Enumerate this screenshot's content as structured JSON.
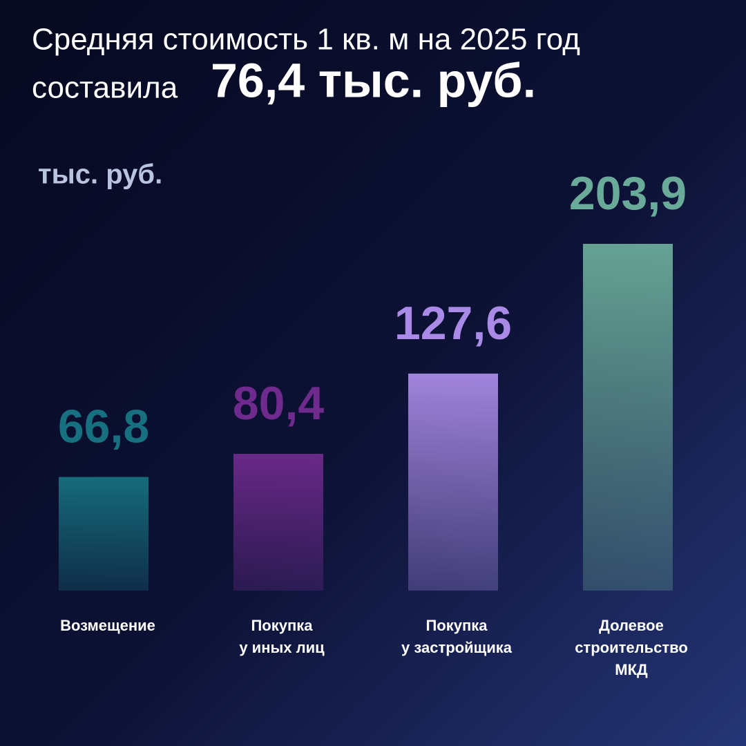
{
  "chart_data": {
    "type": "bar",
    "title": "Средняя стоимость 1 кв. м на 2025 год",
    "subtitle": "составила",
    "highlight": "76,4 тыс. руб.",
    "unit": "тыс. руб.",
    "categories": [
      [
        "Возмещение"
      ],
      [
        "Покупка",
        "у иных лиц"
      ],
      [
        "Покупка",
        "у застройщика"
      ],
      [
        "Долевое",
        "строительство",
        "МКД"
      ]
    ],
    "values": [
      66.8,
      80.4,
      127.6,
      203.9
    ],
    "value_labels": [
      "66,8",
      "80,4",
      "127,6",
      "203,9"
    ],
    "colors": [
      "#16707f",
      "#6e2a8c",
      "#a98ae6",
      "#6aaa98"
    ]
  }
}
